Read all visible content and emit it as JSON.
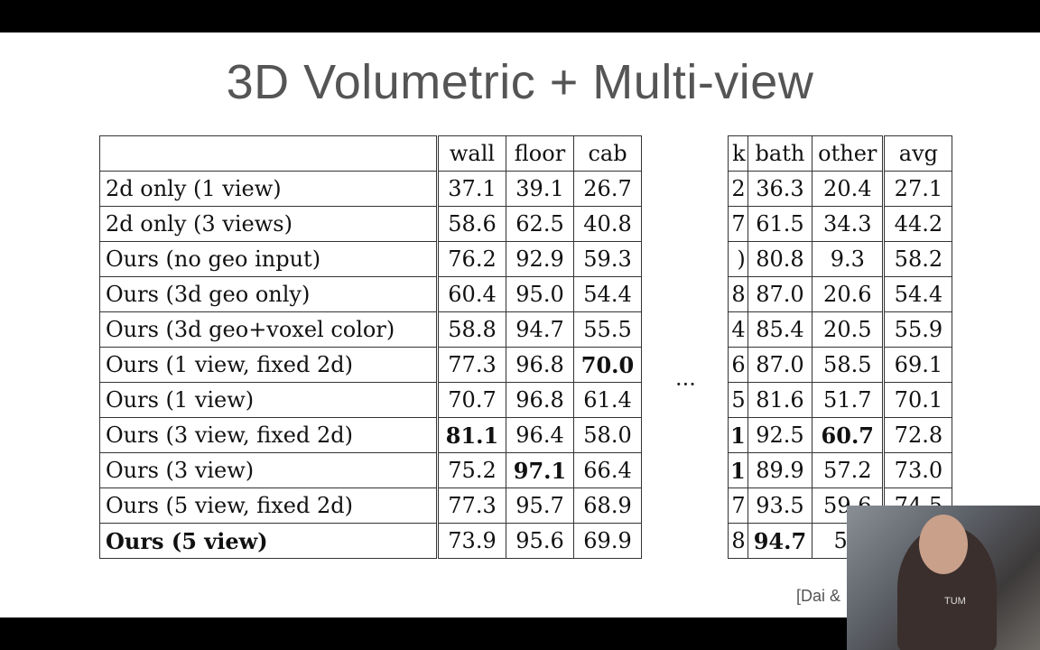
{
  "title": "3D Volumetric + Multi-view",
  "left_table": {
    "headers": [
      "",
      "wall",
      "floor",
      "cab"
    ],
    "rows": [
      {
        "label": "2d only (1 view)",
        "values": [
          "37.1",
          "39.1",
          "26.7"
        ]
      },
      {
        "label": "2d only (3 views)",
        "values": [
          "58.6",
          "62.5",
          "40.8"
        ]
      },
      {
        "label": "Ours (no geo input)",
        "values": [
          "76.2",
          "92.9",
          "59.3"
        ]
      },
      {
        "label": "Ours (3d geo only)",
        "values": [
          "60.4",
          "95.0",
          "54.4"
        ]
      },
      {
        "label": "Ours (3d geo+voxel color)",
        "values": [
          "58.8",
          "94.7",
          "55.5"
        ]
      },
      {
        "label": "Ours (1 view, fixed 2d)",
        "values": [
          "77.3",
          "96.8",
          "70.0"
        ]
      },
      {
        "label": "Ours (1 view)",
        "values": [
          "70.7",
          "96.8",
          "61.4"
        ]
      },
      {
        "label": "Ours (3 view, fixed 2d)",
        "values": [
          "81.1",
          "96.4",
          "58.0"
        ]
      },
      {
        "label": "Ours (3 view)",
        "values": [
          "75.2",
          "97.1",
          "66.4"
        ]
      },
      {
        "label": "Ours (5 view, fixed 2d)",
        "values": [
          "77.3",
          "95.7",
          "68.9"
        ]
      },
      {
        "label": "Ours (5 view)",
        "values": [
          "73.9",
          "95.6",
          "69.9"
        ]
      }
    ]
  },
  "right_table": {
    "headers": [
      "k",
      "bath",
      "other",
      "avg"
    ],
    "rows": [
      {
        "values": [
          "2",
          "36.3",
          "20.4",
          "27.1"
        ]
      },
      {
        "values": [
          "7",
          "61.5",
          "34.3",
          "44.2"
        ]
      },
      {
        "values": ")",
        "values2": [
          "80.8",
          "9.3",
          "58.2"
        ]
      },
      {
        "values": [
          "8",
          "87.0",
          "20.6",
          "54.4"
        ]
      },
      {
        "values": [
          "4",
          "85.4",
          "20.5",
          "55.9"
        ]
      },
      {
        "values": [
          "6",
          "87.0",
          "58.5",
          "69.1"
        ]
      },
      {
        "values": [
          "5",
          "81.6",
          "51.7",
          "70.1"
        ]
      },
      {
        "values": [
          "1",
          "92.5",
          "60.7",
          "72.8"
        ]
      },
      {
        "values": [
          "1",
          "89.9",
          "57.2",
          "73.0"
        ]
      },
      {
        "values": [
          "7",
          "93.5",
          "59.6",
          "74.5"
        ]
      },
      {
        "values": [
          "8",
          "94.7",
          "58",
          ""
        ]
      }
    ]
  },
  "ellipsis": "···",
  "citation": "[Dai &",
  "webcam_logo": "TUM"
}
